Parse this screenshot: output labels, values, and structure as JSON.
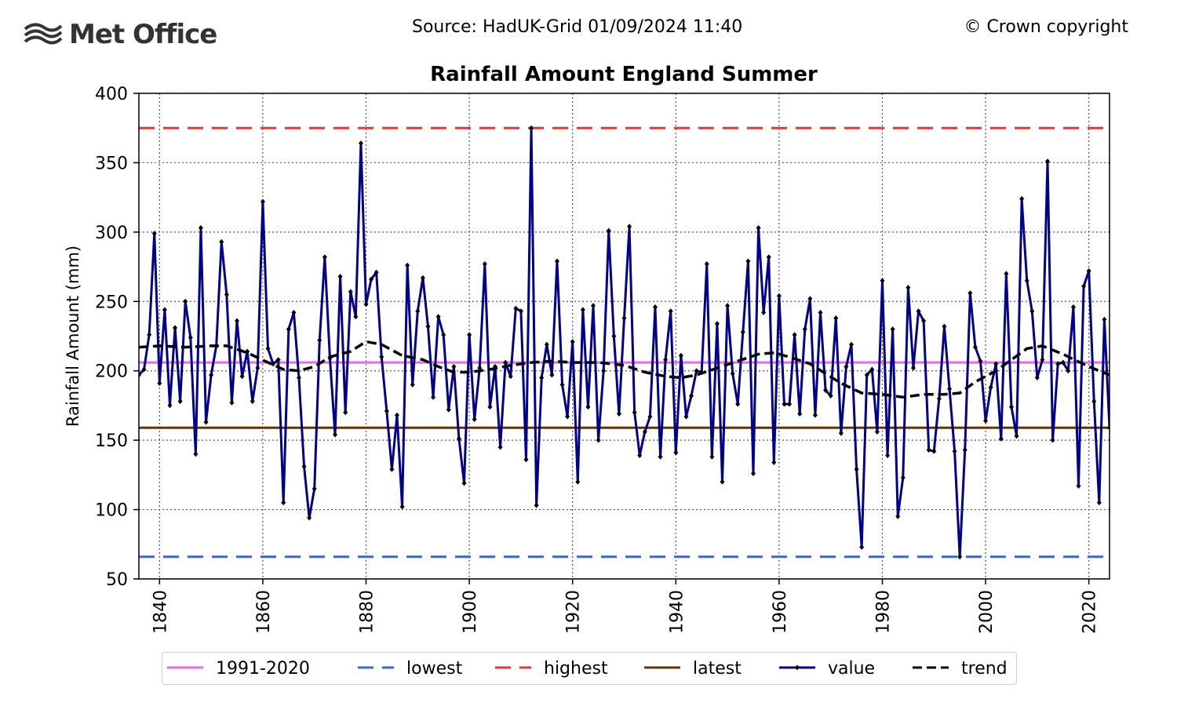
{
  "header": {
    "logo_text": "Met Office",
    "source": "Source: HadUK-Grid 01/09/2024 11:40",
    "copyright": "© Crown copyright"
  },
  "colors": {
    "value": "#00008b",
    "trend": "#000000",
    "baseline": "#ee66ee",
    "lowest": "#3366ee",
    "highest": "#ee3333",
    "latest": "#663300",
    "logo": "#333333"
  },
  "chart_data": {
    "type": "line",
    "title": "Rainfall Amount England Summer",
    "xlabel": "",
    "ylabel": "Rainfall Amount (mm)",
    "xlim": [
      1836,
      2024
    ],
    "ylim": [
      50,
      400
    ],
    "x_ticks": [
      1840,
      1860,
      1880,
      1900,
      1920,
      1940,
      1960,
      1980,
      2000,
      2020
    ],
    "y_ticks": [
      50,
      100,
      150,
      200,
      250,
      300,
      350,
      400
    ],
    "grid": true,
    "legend_position": "bottom",
    "reference_lines": [
      {
        "name": "1991-2020",
        "value": 206,
        "style": "solid"
      },
      {
        "name": "lowest",
        "value": 66,
        "style": "dashed"
      },
      {
        "name": "highest",
        "value": 375,
        "style": "dashed"
      },
      {
        "name": "latest",
        "value": 159,
        "style": "solid"
      }
    ],
    "series": [
      {
        "name": "value",
        "x_start": 1836,
        "values": [
          197,
          201,
          226,
          299,
          191,
          244,
          175,
          231,
          178,
          250,
          224,
          140,
          303,
          163,
          197,
          218,
          293,
          255,
          177,
          236,
          196,
          214,
          178,
          202,
          322,
          216,
          205,
          208,
          105,
          230,
          242,
          195,
          131,
          94,
          115,
          222,
          282,
          209,
          154,
          268,
          170,
          257,
          239,
          364,
          248,
          266,
          271,
          210,
          171,
          129,
          168,
          102,
          276,
          190,
          243,
          267,
          232,
          181,
          239,
          226,
          172,
          203,
          151,
          119,
          226,
          165,
          202,
          277,
          174,
          203,
          145,
          206,
          196,
          245,
          243,
          136,
          375,
          103,
          195,
          219,
          197,
          279,
          190,
          167,
          221,
          120,
          244,
          174,
          247,
          150,
          200,
          301,
          225,
          169,
          238,
          304,
          170,
          139,
          156,
          167,
          246,
          138,
          208,
          243,
          141,
          211,
          167,
          182,
          200,
          199,
          277,
          138,
          234,
          120,
          247,
          198,
          176,
          228,
          279,
          126,
          303,
          242,
          282,
          134,
          254,
          176,
          176,
          226,
          169,
          230,
          252,
          168,
          242,
          186,
          182,
          238,
          155,
          203,
          219,
          129,
          73,
          197,
          201,
          156,
          265,
          139,
          230,
          95,
          123,
          260,
          202,
          243,
          236,
          143,
          142,
          180,
          232,
          187,
          142,
          66,
          143,
          256,
          217,
          207,
          164,
          188,
          205,
          151,
          270,
          174,
          153,
          324,
          265,
          243,
          195,
          208,
          351,
          150,
          205,
          206,
          200,
          246,
          117,
          261,
          272,
          178,
          105,
          237,
          159
        ]
      },
      {
        "name": "trend",
        "points": [
          [
            1836,
            217
          ],
          [
            1840,
            218
          ],
          [
            1845,
            217
          ],
          [
            1850,
            218
          ],
          [
            1853,
            218
          ],
          [
            1857,
            213
          ],
          [
            1861,
            206
          ],
          [
            1864,
            201
          ],
          [
            1867,
            200
          ],
          [
            1870,
            203
          ],
          [
            1873,
            210
          ],
          [
            1877,
            214
          ],
          [
            1880,
            221
          ],
          [
            1883,
            219
          ],
          [
            1887,
            211
          ],
          [
            1891,
            208
          ],
          [
            1894,
            203
          ],
          [
            1897,
            199
          ],
          [
            1900,
            199
          ],
          [
            1904,
            201
          ],
          [
            1908,
            204
          ],
          [
            1912,
            206
          ],
          [
            1916,
            207
          ],
          [
            1920,
            206
          ],
          [
            1925,
            206
          ],
          [
            1930,
            204
          ],
          [
            1934,
            199
          ],
          [
            1938,
            196
          ],
          [
            1941,
            195
          ],
          [
            1944,
            197
          ],
          [
            1948,
            202
          ],
          [
            1952,
            207
          ],
          [
            1956,
            212
          ],
          [
            1959,
            213
          ],
          [
            1962,
            210
          ],
          [
            1966,
            205
          ],
          [
            1969,
            198
          ],
          [
            1972,
            191
          ],
          [
            1976,
            184
          ],
          [
            1980,
            183
          ],
          [
            1984,
            181
          ],
          [
            1988,
            183
          ],
          [
            1992,
            183
          ],
          [
            1995,
            184
          ],
          [
            1998,
            192
          ],
          [
            2002,
            200
          ],
          [
            2005,
            208
          ],
          [
            2008,
            216
          ],
          [
            2011,
            218
          ],
          [
            2015,
            212
          ],
          [
            2020,
            203
          ],
          [
            2024,
            197
          ]
        ]
      }
    ]
  }
}
